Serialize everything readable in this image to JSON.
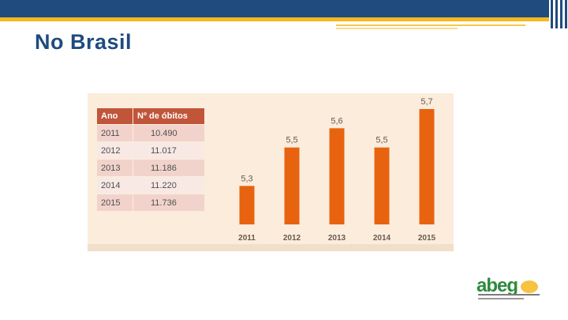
{
  "page": {
    "title": "No Brasil"
  },
  "table": {
    "headers": [
      "Ano",
      "Nº de óbitos"
    ],
    "rows": [
      [
        "2011",
        "10.490"
      ],
      [
        "2012",
        "11.017"
      ],
      [
        "2013",
        "11.186"
      ],
      [
        "2014",
        "11.220"
      ],
      [
        "2015",
        "11.736"
      ]
    ]
  },
  "chart_data": {
    "type": "bar",
    "categories": [
      "2011",
      "2012",
      "2013",
      "2014",
      "2015"
    ],
    "values": [
      5.3,
      5.5,
      5.6,
      5.5,
      5.7
    ],
    "value_labels": [
      "5,3",
      "5,5",
      "5,6",
      "5,5",
      "5,7"
    ],
    "title": "",
    "xlabel": "",
    "ylabel": "",
    "ylim": [
      5.1,
      5.7
    ],
    "grid": false,
    "bar_color": "#e8630f"
  },
  "colors": {
    "navy": "#1f4b7e",
    "yellow": "#f6b81f",
    "table_header": "#c0553a",
    "panel_bg": "#fbecdc"
  },
  "logo": {
    "text": "abeg",
    "icon": "abeg-logo"
  }
}
